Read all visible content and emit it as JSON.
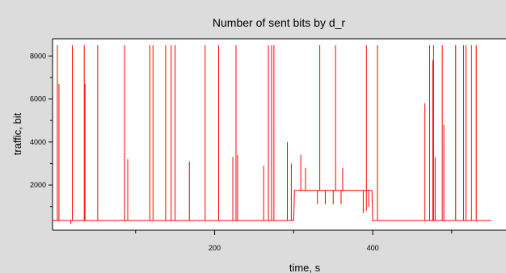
{
  "chart_data": {
    "type": "line",
    "title": "Number of sent bits by d_r",
    "xlabel": "time, s",
    "ylabel": "traffic, bit",
    "xlim": [
      0,
      540
    ],
    "ylim": [
      -100,
      8800
    ],
    "xticks": [
      200,
      400
    ],
    "xminorticks": [
      100,
      300,
      500
    ],
    "yticks": [
      2000,
      4000,
      6000,
      8000
    ],
    "grid": false,
    "line_color": "#ff0000",
    "series": [
      {
        "baseline": 350,
        "elevated_level": 1750,
        "elevated_range": [
          300,
          400
        ],
        "spikes": [
          {
            "x": 1,
            "y": 8500
          },
          {
            "x": 3,
            "y": 6700
          },
          {
            "x": 18,
            "y": 200
          },
          {
            "x": 20,
            "y": 8500
          },
          {
            "x": 35,
            "y": 8500
          },
          {
            "x": 36,
            "y": 6700
          },
          {
            "x": 52,
            "y": 8500
          },
          {
            "x": 86,
            "y": 8500
          },
          {
            "x": 90,
            "y": 3200
          },
          {
            "x": 118,
            "y": 8500
          },
          {
            "x": 122,
            "y": 8500
          },
          {
            "x": 138,
            "y": 8500
          },
          {
            "x": 145,
            "y": 8500
          },
          {
            "x": 150,
            "y": 8500
          },
          {
            "x": 168,
            "y": 3100
          },
          {
            "x": 188,
            "y": 8500
          },
          {
            "x": 205,
            "y": 8500
          },
          {
            "x": 223,
            "y": 3300
          },
          {
            "x": 227,
            "y": 8500
          },
          {
            "x": 229,
            "y": 3400
          },
          {
            "x": 262,
            "y": 2900
          },
          {
            "x": 268,
            "y": 8500
          },
          {
            "x": 272,
            "y": 8500
          },
          {
            "x": 275,
            "y": 8500
          },
          {
            "x": 292,
            "y": 4000
          },
          {
            "x": 297,
            "y": 3000
          },
          {
            "x": 309,
            "y": 3400
          },
          {
            "x": 315,
            "y": 2800
          },
          {
            "x": 333,
            "y": 8500
          },
          {
            "x": 353,
            "y": 8500
          },
          {
            "x": 362,
            "y": 2800
          },
          {
            "x": 392,
            "y": 8500
          },
          {
            "x": 406,
            "y": 8500
          },
          {
            "x": 466,
            "y": 5800
          },
          {
            "x": 472,
            "y": 8500
          },
          {
            "x": 476,
            "y": 7800
          },
          {
            "x": 477,
            "y": 8500
          },
          {
            "x": 479,
            "y": 3300
          },
          {
            "x": 488,
            "y": 8500
          },
          {
            "x": 490,
            "y": 4800
          },
          {
            "x": 505,
            "y": 8500
          },
          {
            "x": 515,
            "y": 8500
          },
          {
            "x": 518,
            "y": 8500
          },
          {
            "x": 525,
            "y": 8500
          },
          {
            "x": 531,
            "y": 8500
          }
        ],
        "dips": [
          {
            "x": 330,
            "y": 1100
          },
          {
            "x": 340,
            "y": 1100
          },
          {
            "x": 350,
            "y": 1100
          },
          {
            "x": 360,
            "y": 1100
          },
          {
            "x": 388,
            "y": 700
          },
          {
            "x": 392,
            "y": 800
          },
          {
            "x": 395,
            "y": 1000
          }
        ]
      }
    ]
  }
}
